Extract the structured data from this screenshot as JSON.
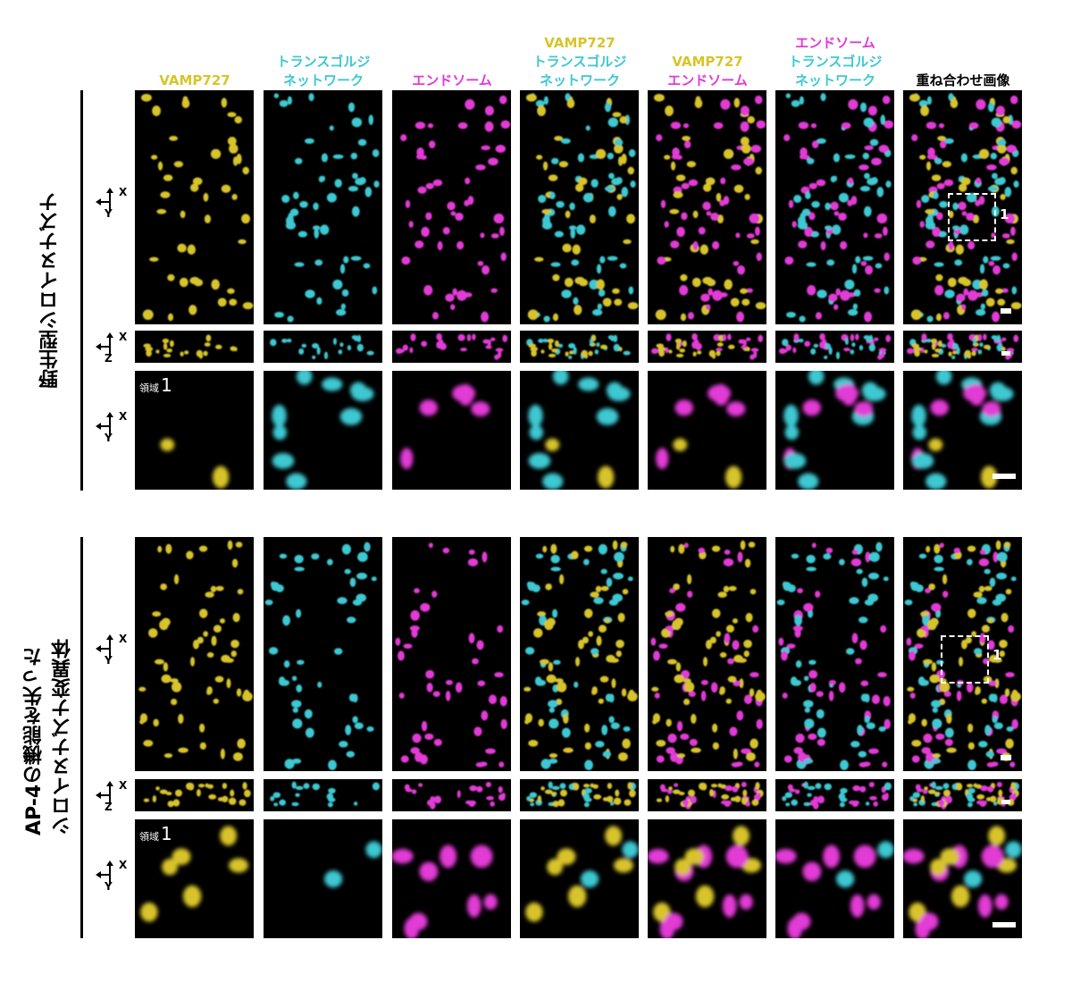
{
  "colors": {
    "yellow": "#d8c42a",
    "cyan": "#3cc8d2",
    "magenta": "#e23ad6",
    "background": "#000000",
    "text": "#000000"
  },
  "columns": [
    {
      "lines": [
        {
          "text": "VAMP727",
          "color": "#d8c42a"
        }
      ]
    },
    {
      "lines": [
        {
          "text": "トランスゴルジ",
          "color": "#3cc8d2"
        },
        {
          "text": "ネットワーク",
          "color": "#3cc8d2"
        }
      ]
    },
    {
      "lines": [
        {
          "text": "エンドソーム",
          "color": "#e23ad6"
        }
      ]
    },
    {
      "lines": [
        {
          "text": "VAMP727",
          "color": "#d8c42a"
        },
        {
          "text": "トランスゴルジ",
          "color": "#3cc8d2"
        },
        {
          "text": "ネットワーク",
          "color": "#3cc8d2"
        }
      ]
    },
    {
      "lines": [
        {
          "text": "VAMP727",
          "color": "#d8c42a"
        },
        {
          "text": "エンドソーム",
          "color": "#e23ad6"
        }
      ]
    },
    {
      "lines": [
        {
          "text": "エンドソーム",
          "color": "#e23ad6"
        },
        {
          "text": "トランスゴルジ",
          "color": "#3cc8d2"
        },
        {
          "text": "ネットワーク",
          "color": "#3cc8d2"
        }
      ]
    },
    {
      "lines": [
        {
          "text": "重ね合わせ画像",
          "color": "#000000"
        }
      ]
    }
  ],
  "groups": [
    {
      "label_lines": [
        "野生型シロイヌナズナ"
      ]
    },
    {
      "label_lines": [
        "AP-4の機能を失った",
        "シロイヌナズナ変異体"
      ]
    }
  ],
  "axes": {
    "xy": {
      "horizontal": "X",
      "vertical": "Y"
    },
    "xz": {
      "horizontal": "X",
      "vertical": "Z"
    }
  },
  "region": {
    "prefix": "領域",
    "number": "1"
  },
  "roi_label": "1"
}
